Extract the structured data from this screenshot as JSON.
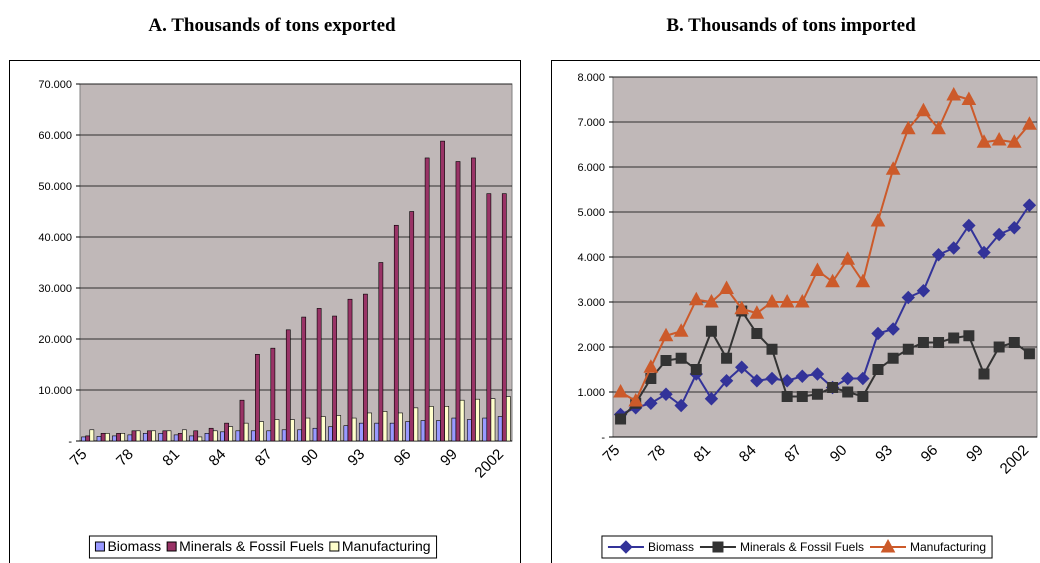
{
  "chart_data": [
    {
      "type": "bar",
      "title": "A. Thousands of tons exported",
      "categories": [
        "75",
        null,
        null,
        "78",
        null,
        null,
        "81",
        null,
        null,
        "84",
        null,
        null,
        "87",
        null,
        null,
        "90",
        null,
        null,
        "93",
        null,
        null,
        "96",
        null,
        null,
        "99",
        null,
        null,
        "2002"
      ],
      "series": [
        {
          "name": "Biomass",
          "color": "#9999ff",
          "values": [
            800,
            900,
            1000,
            1200,
            1500,
            1500,
            1200,
            1000,
            1500,
            1800,
            2000,
            2000,
            2000,
            2200,
            2200,
            2500,
            2800,
            3000,
            3500,
            3500,
            3500,
            3800,
            4000,
            4000,
            4500,
            4200,
            4500,
            4800
          ]
        },
        {
          "name": "Minerals & Fossil Fuels",
          "color": "#993366",
          "values": [
            1000,
            1500,
            1500,
            2000,
            2000,
            2000,
            1500,
            2000,
            2500,
            3500,
            8000,
            17000,
            18200,
            21800,
            24300,
            26000,
            24500,
            27800,
            28800,
            35000,
            42300,
            45000,
            55500,
            58800,
            54800,
            55500,
            48500,
            48500
          ]
        },
        {
          "name": "Manufacturing",
          "color": "#ffffcc",
          "values": [
            2200,
            1500,
            1500,
            2000,
            2000,
            2000,
            2200,
            800,
            2000,
            2800,
            3500,
            3800,
            4200,
            4200,
            4500,
            4800,
            5000,
            4500,
            5500,
            5800,
            5500,
            6500,
            6800,
            6800,
            8000,
            8200,
            8300,
            8700
          ]
        }
      ],
      "ylim": [
        0,
        70000
      ],
      "yticks": [
        {
          "value": 0,
          "label": "-"
        },
        {
          "value": 10000,
          "label": "10.000"
        },
        {
          "value": 20000,
          "label": "20.000"
        },
        {
          "value": 30000,
          "label": "30.000"
        },
        {
          "value": 40000,
          "label": "40.000"
        },
        {
          "value": 50000,
          "label": "50.000"
        },
        {
          "value": 60000,
          "label": "60.000"
        },
        {
          "value": 70000,
          "label": "70.000"
        }
      ],
      "grid": true,
      "legend": "bottom"
    },
    {
      "type": "line",
      "title": "B. Thousands of tons imported",
      "categories": [
        "75",
        null,
        null,
        "78",
        null,
        null,
        "81",
        null,
        null,
        "84",
        null,
        null,
        "87",
        null,
        null,
        "90",
        null,
        null,
        "93",
        null,
        null,
        "96",
        null,
        null,
        "99",
        null,
        null,
        "2002"
      ],
      "series": [
        {
          "name": "Biomass",
          "color": "#333399",
          "marker": "diamond",
          "values": [
            500,
            650,
            750,
            950,
            700,
            1400,
            850,
            1250,
            1550,
            1250,
            1300,
            1250,
            1350,
            1400,
            1100,
            1300,
            1300,
            2300,
            2400,
            3100,
            3250,
            4050,
            4200,
            4700,
            4100,
            4500,
            4650,
            5150
          ]
        },
        {
          "name": "Minerals & Fossil Fuels",
          "color": "#333333",
          "marker": "square",
          "values": [
            400,
            750,
            1300,
            1700,
            1750,
            1500,
            2350,
            1750,
            2800,
            2300,
            1950,
            900,
            900,
            950,
            1100,
            1000,
            900,
            1500,
            1750,
            1950,
            2100,
            2100,
            2200,
            2250,
            1400,
            2000,
            2100,
            1850
          ]
        },
        {
          "name": "Manufacturing",
          "color": "#cc5a2a",
          "marker": "triangle",
          "values": [
            1000,
            800,
            1550,
            2250,
            2350,
            3050,
            3000,
            3300,
            2850,
            2750,
            3000,
            3000,
            3000,
            3700,
            3450,
            3950,
            3450,
            4800,
            5950,
            6850,
            7250,
            6850,
            7600,
            7500,
            6550,
            6600,
            6550,
            6950
          ]
        }
      ],
      "ylim": [
        0,
        8000
      ],
      "yticks": [
        {
          "value": 0,
          "label": "-"
        },
        {
          "value": 1000,
          "label": "1.000"
        },
        {
          "value": 2000,
          "label": "2.000"
        },
        {
          "value": 3000,
          "label": "3.000"
        },
        {
          "value": 4000,
          "label": "4.000"
        },
        {
          "value": 5000,
          "label": "5.000"
        },
        {
          "value": 6000,
          "label": "6.000"
        },
        {
          "value": 7000,
          "label": "7.000"
        },
        {
          "value": 8000,
          "label": "8.000"
        }
      ],
      "grid": true,
      "legend": "bottom"
    }
  ]
}
